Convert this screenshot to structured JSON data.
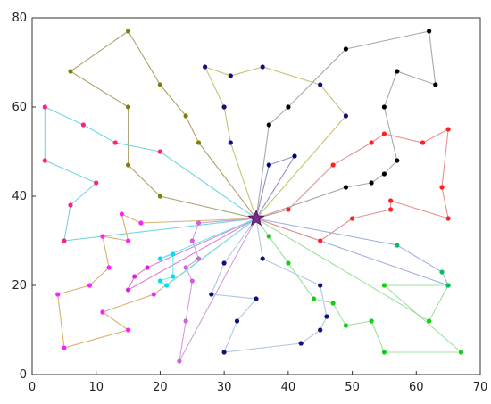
{
  "chart_data": {
    "type": "line",
    "title": "",
    "xlabel": "",
    "ylabel": "",
    "xlim": [
      0,
      70
    ],
    "ylim": [
      0,
      80
    ],
    "xticks": [
      0,
      10,
      20,
      30,
      40,
      50,
      60,
      70
    ],
    "yticks": [
      0,
      20,
      40,
      60,
      80
    ],
    "grid": false,
    "depot": {
      "x": 35,
      "y": 35,
      "color": "#7a2a8a"
    },
    "series": [
      {
        "color": "#b0a070",
        "points": [
          [
            35,
            35
          ],
          [
            20,
            40
          ],
          [
            15,
            47
          ],
          [
            15,
            60
          ],
          [
            6,
            68
          ],
          [
            15,
            77
          ],
          [
            20,
            65
          ],
          [
            24,
            58
          ],
          [
            26,
            52
          ],
          [
            35,
            35
          ]
        ]
      },
      {
        "color": "#70d8e0",
        "points": [
          [
            35,
            35
          ],
          [
            20,
            50
          ],
          [
            13,
            52
          ],
          [
            8,
            56
          ],
          [
            2,
            60
          ],
          [
            2,
            48
          ],
          [
            10,
            43
          ],
          [
            6,
            38
          ],
          [
            5,
            30
          ],
          [
            35,
            35
          ]
        ]
      },
      {
        "color": "#d8b070",
        "points": [
          [
            35,
            35
          ],
          [
            17,
            34
          ],
          [
            14,
            36
          ],
          [
            15,
            30
          ],
          [
            11,
            31
          ],
          [
            12,
            24
          ],
          [
            9,
            20
          ],
          [
            4,
            18
          ],
          [
            5,
            6
          ],
          [
            15,
            10
          ],
          [
            11,
            14
          ],
          [
            19,
            18
          ],
          [
            35,
            35
          ]
        ]
      },
      {
        "color": "#e080d8",
        "points": [
          [
            35,
            35
          ],
          [
            18,
            24
          ],
          [
            16,
            22
          ],
          [
            15,
            19
          ],
          [
            35,
            35
          ]
        ]
      },
      {
        "color": "#70e8f0",
        "points": [
          [
            35,
            35
          ],
          [
            20,
            26
          ],
          [
            22,
            27
          ],
          [
            22,
            22
          ],
          [
            20,
            21
          ],
          [
            21,
            20
          ],
          [
            35,
            35
          ]
        ]
      },
      {
        "color": "#d0a0d8",
        "points": [
          [
            35,
            35
          ],
          [
            26,
            34
          ],
          [
            25,
            30
          ],
          [
            26,
            26
          ],
          [
            24,
            24
          ],
          [
            25,
            21
          ],
          [
            24,
            12
          ],
          [
            23,
            3
          ],
          [
            35,
            35
          ]
        ]
      },
      {
        "color": "#b0c8e0",
        "points": [
          [
            35,
            35
          ],
          [
            30,
            25
          ],
          [
            28,
            18
          ],
          [
            35,
            17
          ],
          [
            32,
            12
          ],
          [
            30,
            5
          ],
          [
            42,
            7
          ],
          [
            45,
            10
          ],
          [
            46,
            13
          ],
          [
            45,
            20
          ],
          [
            36,
            26
          ],
          [
            35,
            35
          ]
        ]
      },
      {
        "color": "#a0e0a0",
        "points": [
          [
            35,
            35
          ],
          [
            37,
            31
          ],
          [
            40,
            25
          ],
          [
            44,
            17
          ],
          [
            47,
            16
          ],
          [
            49,
            11
          ],
          [
            53,
            12
          ],
          [
            55,
            5
          ],
          [
            67,
            5
          ],
          [
            55,
            20
          ],
          [
            65,
            20
          ],
          [
            62,
            12
          ],
          [
            35,
            35
          ]
        ]
      },
      {
        "color": "#a0b0e0",
        "points": [
          [
            35,
            35
          ],
          [
            57,
            29
          ],
          [
            64,
            23
          ],
          [
            65,
            20
          ],
          [
            35,
            35
          ]
        ]
      },
      {
        "color": "#e89090",
        "points": [
          [
            35,
            35
          ],
          [
            45,
            30
          ],
          [
            50,
            35
          ],
          [
            56,
            37
          ],
          [
            56,
            39
          ],
          [
            65,
            35
          ],
          [
            64,
            42
          ],
          [
            65,
            55
          ],
          [
            61,
            52
          ],
          [
            55,
            54
          ],
          [
            53,
            52
          ],
          [
            47,
            47
          ],
          [
            40,
            37
          ],
          [
            35,
            35
          ]
        ]
      },
      {
        "color": "#9090c8",
        "points": [
          [
            35,
            35
          ],
          [
            37,
            47
          ],
          [
            41,
            49
          ],
          [
            35,
            35
          ]
        ]
      },
      {
        "color": "#c8c070",
        "points": [
          [
            35,
            35
          ],
          [
            49,
            58
          ],
          [
            45,
            65
          ],
          [
            36,
            69
          ],
          [
            31,
            67
          ],
          [
            27,
            69
          ],
          [
            30,
            60
          ],
          [
            31,
            52
          ],
          [
            35,
            35
          ]
        ]
      },
      {
        "color": "#a8a8a8",
        "points": [
          [
            35,
            35
          ],
          [
            49,
            42
          ],
          [
            53,
            43
          ],
          [
            55,
            45
          ],
          [
            57,
            48
          ],
          [
            55,
            60
          ],
          [
            57,
            68
          ],
          [
            63,
            65
          ],
          [
            62,
            77
          ],
          [
            49,
            73
          ],
          [
            40,
            60
          ],
          [
            37,
            56
          ],
          [
            35,
            35
          ]
        ]
      }
    ]
  }
}
